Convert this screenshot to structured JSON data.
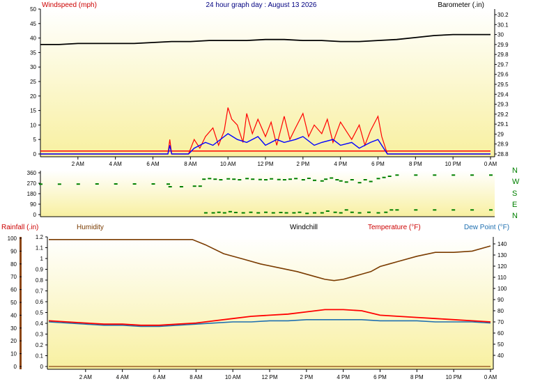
{
  "title": "24 hour graph day : August 13 2026",
  "colors": {
    "windspeed": "#ff0000",
    "gust": "#ff0000",
    "windspeed_avg": "#0000ff",
    "barometer": "#000000",
    "direction": "#008000",
    "temperature": "#ff0000",
    "dewpoint": "#1e6fb0",
    "humidity": "#7a3b00",
    "rainfall": "#8b4513",
    "bg_top": "#ffffff",
    "bg_bottom": "#f8f0a0"
  },
  "x_ticks": [
    "2 AM",
    "4 AM",
    "6 AM",
    "8 AM",
    "10 AM",
    "12 PM",
    "2 PM",
    "4 PM",
    "6 PM",
    "8 PM",
    "10 PM",
    "0 AM"
  ],
  "compass": [
    "N",
    "W",
    "S",
    "E",
    "N"
  ],
  "chart_data": [
    {
      "type": "line",
      "title": "24 hour graph day : August 13 2026",
      "left_axis": {
        "label": "Windspeed (mph)",
        "ylim": [
          0,
          50
        ],
        "ticks": [
          "0",
          "5",
          "10",
          "15",
          "20",
          "25",
          "30",
          "35",
          "40",
          "45",
          "50"
        ]
      },
      "right_axis": {
        "label": "Barometer (.in)",
        "ylim": [
          28.8,
          30.2
        ],
        "ticks": [
          "28.8",
          "28.9",
          "29",
          "29.1",
          "29.2",
          "29.3",
          "29.4",
          "29.5",
          "29.6",
          "29.7",
          "29.8",
          "29.9",
          "30",
          "30.1",
          "30.2"
        ]
      },
      "grid": false,
      "series": [
        {
          "name": "Barometer (.in)",
          "axis": "right",
          "x": [
            0,
            1,
            2,
            3,
            4,
            5,
            6,
            7,
            8,
            9,
            10,
            11,
            12,
            13,
            14,
            15,
            16,
            17,
            18,
            19,
            20,
            21,
            22,
            23,
            24
          ],
          "values": [
            29.9,
            29.9,
            29.91,
            29.91,
            29.91,
            29.91,
            29.92,
            29.93,
            29.93,
            29.94,
            29.94,
            29.94,
            29.95,
            29.95,
            29.94,
            29.94,
            29.93,
            29.93,
            29.94,
            29.95,
            29.97,
            29.99,
            30.0,
            30.0,
            30.0
          ]
        },
        {
          "name": "Windspeed",
          "axis": "left",
          "x": [
            0,
            6.8,
            6.9,
            7.0,
            7.9,
            8.2,
            8.5,
            8.8,
            9.2,
            9.5,
            9.8,
            10.0,
            10.2,
            10.5,
            10.8,
            11.0,
            11.3,
            11.6,
            12.0,
            12.3,
            12.6,
            13.0,
            13.3,
            13.6,
            14.0,
            14.3,
            14.6,
            15.0,
            15.3,
            15.6,
            16.0,
            16.3,
            16.6,
            17.0,
            17.3,
            17.6,
            18.0,
            18.2,
            18.5,
            18.8,
            19.0,
            24
          ],
          "values": [
            0,
            0,
            5,
            0,
            0,
            5,
            2,
            6,
            9,
            3,
            8,
            16,
            12,
            10,
            4,
            14,
            7,
            12,
            6,
            11,
            3,
            13,
            5,
            9,
            14,
            6,
            10,
            7,
            12,
            4,
            11,
            8,
            5,
            10,
            3,
            8,
            13,
            6,
            0,
            0,
            0,
            0
          ]
        },
        {
          "name": "Gust",
          "axis": "left",
          "x": [
            0,
            24
          ],
          "values": [
            1,
            1
          ]
        },
        {
          "name": "Windspeed average",
          "axis": "left",
          "x": [
            0,
            6.8,
            6.9,
            7.0,
            7.9,
            8.2,
            8.8,
            9.2,
            9.8,
            10.0,
            10.5,
            11.0,
            11.6,
            12.0,
            12.6,
            13.0,
            13.6,
            14.0,
            14.6,
            15.0,
            15.6,
            16.0,
            16.6,
            17.0,
            17.6,
            18.0,
            18.5,
            24
          ],
          "values": [
            0,
            0,
            3,
            0,
            0,
            2,
            4,
            3,
            6,
            7,
            5,
            4,
            6,
            3,
            5,
            4,
            5,
            6,
            3,
            4,
            5,
            3,
            4,
            2,
            4,
            5,
            0,
            0
          ]
        }
      ]
    },
    {
      "type": "scatter",
      "title": "",
      "left_axis": {
        "ylim": [
          0,
          360
        ],
        "ticks": [
          "0",
          "90",
          "180",
          "270",
          "360"
        ]
      },
      "series": [
        {
          "name": "Wind direction",
          "x": [
            0,
            1,
            2,
            3,
            4,
            5,
            6,
            6.8,
            6.9,
            7.5,
            8.2,
            8.5,
            8.7,
            9.0,
            9.3,
            9.6,
            10.0,
            10.3,
            10.6,
            11.0,
            11.3,
            11.7,
            12.0,
            12.3,
            12.7,
            13.0,
            13.3,
            13.6,
            14.0,
            14.3,
            14.6,
            15.0,
            15.2,
            15.5,
            15.8,
            16.0,
            16.3,
            16.6,
            17.0,
            17.3,
            17.6,
            18.0,
            18.3,
            18.6,
            19,
            20,
            21,
            22,
            23,
            24
          ],
          "values": [
            262,
            262,
            263,
            264,
            264,
            264,
            264,
            263,
            240,
            240,
            245,
            245,
            305,
            310,
            305,
            300,
            308,
            305,
            300,
            310,
            305,
            302,
            300,
            308,
            302,
            300,
            305,
            310,
            300,
            312,
            295,
            290,
            305,
            315,
            300,
            290,
            280,
            300,
            275,
            300,
            285,
            310,
            320,
            330,
            340,
            340,
            340,
            340,
            340,
            340
          ]
        },
        {
          "name": "Wind direction (northerly)",
          "x": [
            8.8,
            9.2,
            9.5,
            9.8,
            10.1,
            10.4,
            10.8,
            11.2,
            11.6,
            12.0,
            12.4,
            12.8,
            13.1,
            13.5,
            13.8,
            14.2,
            14.6,
            15.0,
            15.3,
            15.7,
            16.0,
            16.3,
            16.6,
            17.0,
            17.5,
            18.0,
            18.4,
            18.7,
            19,
            20,
            21,
            22,
            23,
            24
          ],
          "values": [
            15,
            15,
            20,
            15,
            25,
            18,
            15,
            20,
            15,
            20,
            15,
            18,
            15,
            15,
            20,
            10,
            15,
            15,
            30,
            20,
            15,
            40,
            20,
            15,
            20,
            15,
            20,
            40,
            40,
            40,
            40,
            40,
            40,
            40
          ]
        }
      ]
    },
    {
      "type": "line",
      "title": "",
      "legend": [
        "Rainfall (.in)",
        "Humidity",
        "Windchill",
        "Temperature (°F)",
        "Dew Point (°F)"
      ],
      "left_axis": {
        "label": "Rainfall (.in)",
        "ylim": [
          0,
          1.2
        ],
        "ticks": [
          "0",
          "0.1",
          "0.2",
          "0.3",
          "0.4",
          "0.5",
          "0.6",
          "0.7",
          "0.8",
          "0.9",
          "1",
          "1.1",
          "1.2"
        ]
      },
      "left_axis_humidity": {
        "label": "Humidity",
        "ylim": [
          0,
          100
        ],
        "ticks": [
          "0",
          "10",
          "20",
          "30",
          "40",
          "50",
          "60",
          "70",
          "80",
          "90",
          "100"
        ]
      },
      "right_axis": {
        "label": "Temperature (°F)",
        "ylim": [
          30,
          145
        ],
        "ticks": [
          "40",
          "50",
          "60",
          "70",
          "80",
          "90",
          "100",
          "110",
          "120",
          "130",
          "140"
        ]
      },
      "series": [
        {
          "name": "Humidity",
          "axis": "humidity",
          "x": [
            0,
            1,
            2,
            3,
            4,
            5,
            6,
            7,
            7.8,
            8.5,
            9.5,
            10.5,
            11.5,
            12.5,
            13.5,
            14.5,
            15.0,
            15.5,
            16.0,
            16.5,
            17.0,
            17.5,
            18.0,
            18.5,
            19.0,
            20.0,
            21.0,
            22.0,
            23.0,
            24.0
          ],
          "values": [
            99,
            99,
            99,
            99,
            99,
            99,
            99,
            99,
            99,
            95,
            88,
            84,
            80,
            77,
            74,
            70,
            68,
            67,
            68,
            70,
            72,
            74,
            78,
            80,
            82,
            86,
            89,
            89,
            90,
            94
          ]
        },
        {
          "name": "Temperature (°F)",
          "axis": "right",
          "x": [
            0,
            1,
            2,
            3,
            4,
            5,
            6,
            7,
            8,
            9,
            10,
            11,
            12,
            13,
            14,
            15,
            16,
            17,
            18,
            19,
            20,
            21,
            22,
            23,
            24
          ],
          "values": [
            71,
            70,
            69,
            68,
            68,
            67,
            67,
            68,
            69,
            71,
            73,
            75,
            76,
            77,
            79,
            81,
            81,
            80,
            76,
            75,
            74,
            73,
            72,
            71,
            70
          ]
        },
        {
          "name": "Dew Point (°F)",
          "axis": "right",
          "x": [
            0,
            1,
            2,
            3,
            4,
            5,
            6,
            7,
            8,
            9,
            10,
            11,
            12,
            13,
            14,
            15,
            16,
            17,
            18,
            19,
            20,
            21,
            22,
            23,
            24
          ],
          "values": [
            70,
            69,
            68,
            67,
            67,
            66,
            66,
            67,
            68,
            69,
            70,
            70,
            71,
            71,
            72,
            72,
            72,
            72,
            71,
            71,
            71,
            70,
            70,
            70,
            69
          ]
        },
        {
          "name": "Rainfall (.in)",
          "axis": "left",
          "x": [
            0,
            24
          ],
          "values": [
            0,
            0
          ]
        }
      ]
    }
  ]
}
